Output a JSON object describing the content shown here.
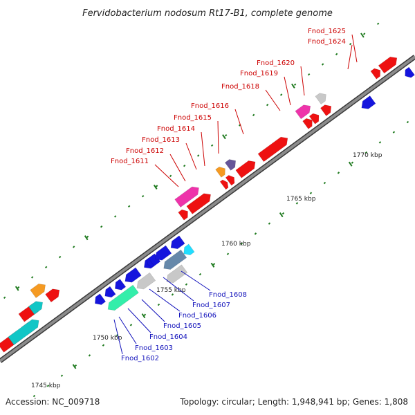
{
  "title": "Fervidobacterium nodosum Rt17-B1, complete genome",
  "footer": {
    "accession": "Accession: NC_009718",
    "summary": "Topology: circular; Length: 1,948,941 bp; Genes: 1,808"
  },
  "colors": {
    "backbone": "#8c8c8c",
    "tick": "#1e7a1e",
    "red_label": "#cc0000",
    "blue_label": "#1111bb",
    "red": "#ee1111",
    "blue": "#1515dd",
    "pink": "#ee33aa",
    "gray": "#c8c8c8",
    "cyan": "#11c6c6",
    "mint": "#33eeaa",
    "orange": "#f59a22",
    "purple": "#665599",
    "steel": "#6688aa",
    "light_cyan": "#22ddff"
  },
  "axis": {
    "scale_labels": [
      "1745 kbp",
      "1750 kbp",
      "1755 kbp",
      "1760 kbp",
      "1765 kbp",
      "1770 kbp"
    ]
  },
  "upper_labels": [
    "Fnod_1611",
    "Fnod_1612",
    "Fnod_1613",
    "Fnod_1614",
    "Fnod_1615",
    "Fnod_1616",
    "Fnod_1618",
    "Fnod_1619",
    "Fnod_1620",
    "Fnod_1624",
    "Fnod_1625"
  ],
  "lower_labels": [
    "Fnod_1602",
    "Fnod_1603",
    "Fnod_1604",
    "Fnod_1605",
    "Fnod_1606",
    "Fnod_1607",
    "Fnod_1608"
  ],
  "features": [
    {
      "color": "red",
      "strand": 1,
      "row": 0
    },
    {
      "color": "red",
      "strand": 1,
      "row": 0
    },
    {
      "color": "red",
      "strand": 1,
      "row": 0
    },
    {
      "color": "cyan",
      "strand": 1,
      "row": 0
    },
    {
      "color": "red",
      "strand": 1,
      "row": 1
    },
    {
      "color": "cyan",
      "strand": 1,
      "row": 1
    },
    {
      "color": "red",
      "strand": 1,
      "row": 1
    },
    {
      "color": "orange",
      "strand": 1,
      "row": 2
    },
    {
      "color": "blue",
      "strand": -1,
      "row": 0
    },
    {
      "color": "blue",
      "strand": -1,
      "row": 0
    },
    {
      "color": "blue",
      "strand": -1,
      "row": 0
    },
    {
      "color": "blue",
      "strand": -1,
      "row": 0
    },
    {
      "color": "blue",
      "strand": -1,
      "row": 0
    },
    {
      "color": "mint",
      "strand": -1,
      "row": 1
    },
    {
      "color": "gray",
      "strand": -1,
      "row": 1
    },
    {
      "color": "blue",
      "strand": -1,
      "row": 0
    },
    {
      "color": "blue",
      "strand": -1,
      "row": 0
    },
    {
      "color": "blue",
      "strand": -1,
      "row": 0
    },
    {
      "color": "steel",
      "strand": -1,
      "row": 1
    },
    {
      "color": "light_cyan",
      "strand": -1,
      "row": 1
    },
    {
      "color": "gray",
      "strand": -1,
      "row": 2
    },
    {
      "color": "red",
      "strand": 1,
      "row": 0
    },
    {
      "color": "red",
      "strand": 1,
      "row": 0
    },
    {
      "color": "pink",
      "strand": 1,
      "row": 1
    },
    {
      "color": "red",
      "strand": 1,
      "row": 0
    },
    {
      "color": "red",
      "strand": 1,
      "row": 0
    },
    {
      "color": "orange",
      "strand": 1,
      "row": 1
    },
    {
      "color": "purple",
      "strand": 1,
      "row": 1
    },
    {
      "color": "red",
      "strand": 1,
      "row": 0
    },
    {
      "color": "red",
      "strand": 1,
      "row": 0
    },
    {
      "color": "red",
      "strand": 1,
      "row": 0
    },
    {
      "color": "red",
      "strand": 1,
      "row": 0
    },
    {
      "color": "pink",
      "strand": 1,
      "row": 1
    },
    {
      "color": "red",
      "strand": 1,
      "row": 0
    },
    {
      "color": "gray",
      "strand": 1,
      "row": 1
    },
    {
      "color": "blue",
      "strand": -1,
      "row": 0
    },
    {
      "color": "red",
      "strand": 1,
      "row": 0
    },
    {
      "color": "red",
      "strand": 1,
      "row": 0
    },
    {
      "color": "blue",
      "strand": -1,
      "row": 0
    },
    {
      "color": "red",
      "strand": 1,
      "row": 0
    }
  ]
}
